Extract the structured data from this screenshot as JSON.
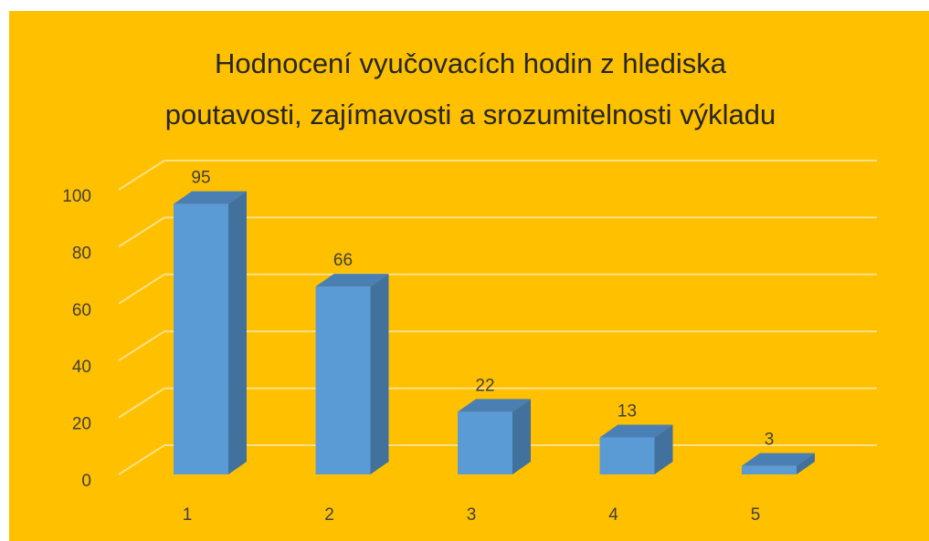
{
  "chart_data": {
    "type": "bar3d",
    "title": [
      "Hodnocení vyučovacích hodin z hlediska",
      "poutavosti, zajímavosti a srozumitelnosti výkladu"
    ],
    "categories": [
      "1",
      "2",
      "3",
      "4",
      "5"
    ],
    "values": [
      95,
      66,
      22,
      13,
      3
    ],
    "color": "#5b9bd5",
    "background": "#ffc000",
    "ylim": [
      0,
      100
    ],
    "yticks": [
      0,
      20,
      40,
      60,
      80,
      100
    ],
    "grid": true
  }
}
